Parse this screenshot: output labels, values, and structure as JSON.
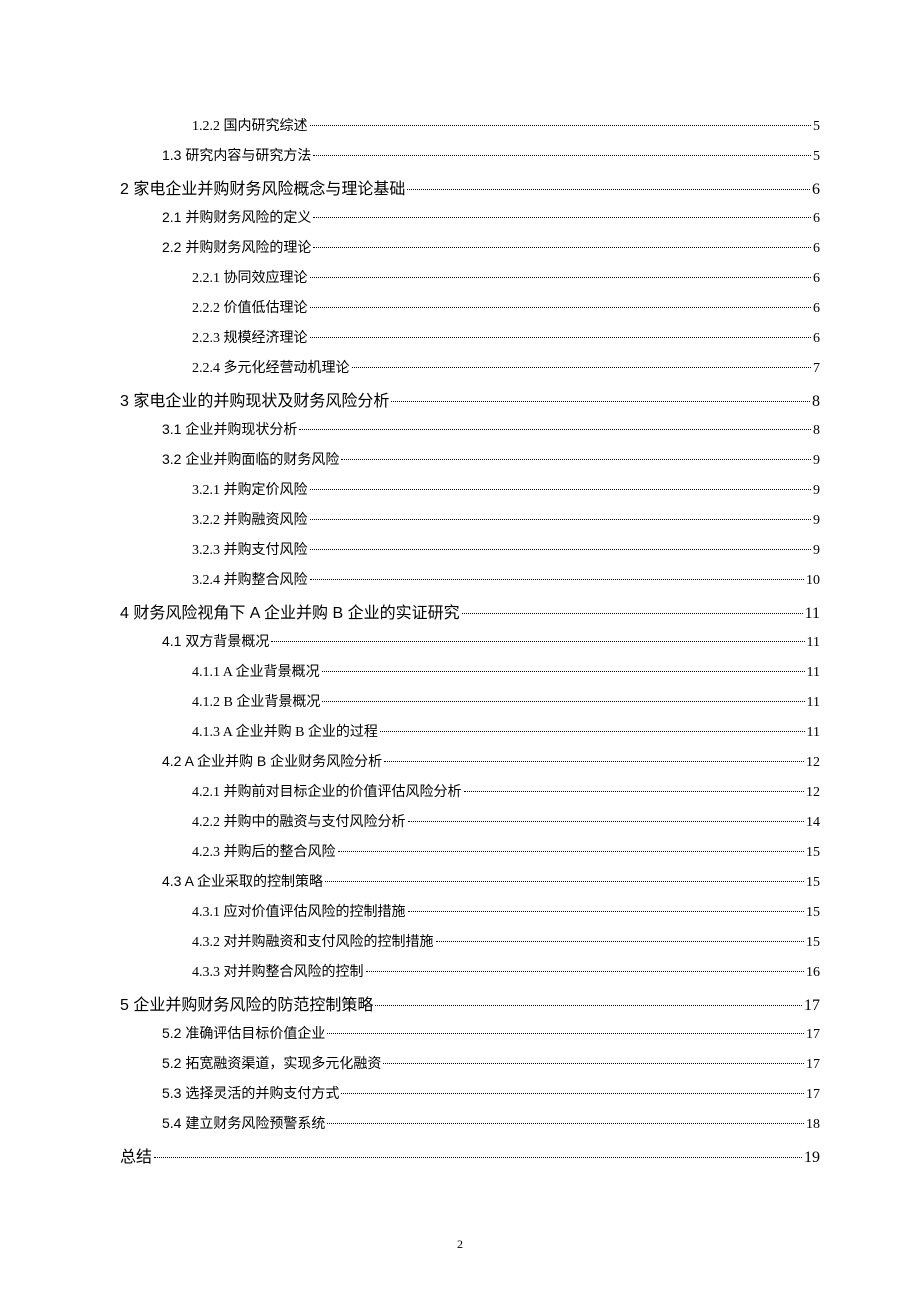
{
  "toc": {
    "entries": [
      {
        "level": 2,
        "label": "1.2.2  国内研究综述",
        "page": "5"
      },
      {
        "level": 1,
        "label": "1.3  研究内容与研究方法",
        "page": "5"
      },
      {
        "level": 0,
        "label": "2  家电企业并购财务风险概念与理论基础",
        "page": "6"
      },
      {
        "level": 1,
        "label": "2.1  并购财务风险的定义",
        "page": "6"
      },
      {
        "level": 1,
        "label": "2.2 并购财务风险的理论",
        "page": "6"
      },
      {
        "level": 2,
        "label": "2.2.1  协同效应理论",
        "page": "6"
      },
      {
        "level": 2,
        "label": "2.2.2  价值低估理论",
        "page": "6"
      },
      {
        "level": 2,
        "label": "2.2.3  规模经济理论",
        "page": "6"
      },
      {
        "level": 2,
        "label": "2.2.4  多元化经营动机理论",
        "page": "7"
      },
      {
        "level": 0,
        "label": "3  家电企业的并购现状及财务风险分析",
        "page": "8"
      },
      {
        "level": 1,
        "label": "3.1  企业并购现状分析",
        "page": "8"
      },
      {
        "level": 1,
        "label": "3.2  企业并购面临的财务风险",
        "page": "9"
      },
      {
        "level": 2,
        "label": "3.2.1  并购定价风险",
        "page": "9"
      },
      {
        "level": 2,
        "label": "3.2.2  并购融资风险",
        "page": "9"
      },
      {
        "level": 2,
        "label": "3.2.3  并购支付风险",
        "page": "9"
      },
      {
        "level": 2,
        "label": "3.2.4  并购整合风险",
        "page": "10"
      },
      {
        "level": 0,
        "label": "4  财务风险视角下 A 企业并购 B 企业的实证研究",
        "page": "11"
      },
      {
        "level": 1,
        "label": "4.1  双方背景概况",
        "page": "11"
      },
      {
        "level": 2,
        "label": "4.1.1 A 企业背景概况",
        "page": "11"
      },
      {
        "level": 2,
        "label": "4.1.2 B 企业背景概况",
        "page": "11"
      },
      {
        "level": 2,
        "label": "4.1.3 A 企业并购 B 企业的过程",
        "page": "11"
      },
      {
        "level": 1,
        "label": "4.2 A 企业并购 B 企业财务风险分析",
        "page": "12"
      },
      {
        "level": 2,
        "label": "4.2.1  并购前对目标企业的价值评估风险分析",
        "page": "12"
      },
      {
        "level": 2,
        "label": "4.2.2  并购中的融资与支付风险分析",
        "page": "14"
      },
      {
        "level": 2,
        "label": "4.2.3  并购后的整合风险",
        "page": "15"
      },
      {
        "level": 1,
        "label": "4.3 A 企业采取的控制策略",
        "page": "15"
      },
      {
        "level": 2,
        "label": "4.3.1  应对价值评估风险的控制措施",
        "page": "15"
      },
      {
        "level": 2,
        "label": "4.3.2  对并购融资和支付风险的控制措施",
        "page": "15"
      },
      {
        "level": 2,
        "label": "4.3.3  对并购整合风险的控制",
        "page": "16"
      },
      {
        "level": 0,
        "label": "5  企业并购财务风险的防范控制策略",
        "page": "17"
      },
      {
        "level": 1,
        "label": "5.2  准确评估目标价值企业",
        "page": "17"
      },
      {
        "level": 1,
        "label": "5.2  拓宽融资渠道，实现多元化融资",
        "page": "17"
      },
      {
        "level": 1,
        "label": "5.3  选择灵活的并购支付方式",
        "page": "17"
      },
      {
        "level": 1,
        "label": "5.4  建立财务风险预警系统",
        "page": "18"
      },
      {
        "level": 0,
        "label": "总结",
        "page": "19"
      }
    ]
  },
  "footer": {
    "page_number": "2"
  }
}
